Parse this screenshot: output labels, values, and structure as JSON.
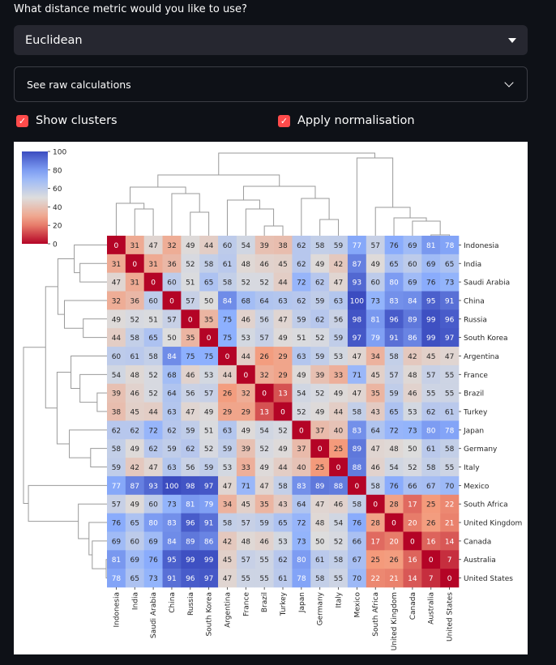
{
  "question_label": "What distance metric would you like to use?",
  "metric_select": {
    "value": "Euclidean",
    "icon": "caret-down-icon"
  },
  "expander": {
    "label": "See raw calculations",
    "icon": "chevron-down-icon"
  },
  "checkboxes": [
    {
      "label": "Show clusters",
      "checked": true
    },
    {
      "label": "Apply normalisation",
      "checked": true
    }
  ],
  "colors": {
    "accent": "#ff4b4b",
    "background": "#0e1117",
    "widget": "#262730"
  },
  "chart_data": {
    "type": "heatmap",
    "colormap": "coolwarm_r",
    "vmin": 0,
    "vmax": 100,
    "colorbar_ticks": [
      0,
      20,
      40,
      60,
      80,
      100
    ],
    "dendrograms": "rows and columns",
    "labels": [
      "Indonesia",
      "India",
      "Saudi Arabia",
      "China",
      "Russia",
      "South Korea",
      "Argentina",
      "France",
      "Brazil",
      "Turkey",
      "Japan",
      "Germany",
      "Italy",
      "Mexico",
      "South Africa",
      "United Kingdom",
      "Canada",
      "Australia",
      "United States"
    ],
    "values": [
      [
        0,
        31,
        47,
        32,
        49,
        44,
        60,
        54,
        39,
        38,
        62,
        58,
        59,
        77,
        57,
        76,
        69,
        81,
        78
      ],
      [
        31,
        0,
        31,
        36,
        52,
        58,
        61,
        48,
        46,
        45,
        62,
        49,
        42,
        87,
        49,
        65,
        60,
        69,
        65
      ],
      [
        47,
        31,
        0,
        60,
        51,
        65,
        58,
        52,
        52,
        44,
        72,
        62,
        47,
        93,
        60,
        80,
        69,
        76,
        73
      ],
      [
        32,
        36,
        60,
        0,
        57,
        50,
        84,
        68,
        64,
        63,
        62,
        59,
        63,
        100,
        73,
        83,
        84,
        95,
        91
      ],
      [
        49,
        52,
        51,
        57,
        0,
        35,
        75,
        46,
        56,
        47,
        59,
        62,
        56,
        98,
        81,
        96,
        89,
        99,
        96
      ],
      [
        44,
        58,
        65,
        50,
        35,
        0,
        75,
        53,
        57,
        49,
        51,
        52,
        59,
        97,
        79,
        91,
        86,
        99,
        97
      ],
      [
        60,
        61,
        58,
        84,
        75,
        75,
        0,
        44,
        26,
        29,
        63,
        59,
        53,
        47,
        34,
        58,
        42,
        45,
        47
      ],
      [
        54,
        48,
        52,
        68,
        46,
        53,
        44,
        0,
        32,
        29,
        49,
        39,
        33,
        71,
        45,
        57,
        48,
        57,
        55
      ],
      [
        39,
        46,
        52,
        64,
        56,
        57,
        26,
        32,
        0,
        13,
        54,
        52,
        49,
        47,
        35,
        59,
        46,
        55,
        55
      ],
      [
        38,
        45,
        44,
        63,
        47,
        49,
        29,
        29,
        13,
        0,
        52,
        49,
        44,
        58,
        43,
        65,
        53,
        62,
        61
      ],
      [
        62,
        62,
        72,
        62,
        59,
        51,
        63,
        49,
        54,
        52,
        0,
        37,
        40,
        83,
        64,
        72,
        73,
        80,
        78
      ],
      [
        58,
        49,
        62,
        59,
        62,
        52,
        59,
        39,
        52,
        49,
        37,
        0,
        25,
        89,
        47,
        48,
        50,
        61,
        58
      ],
      [
        59,
        42,
        47,
        63,
        56,
        59,
        53,
        33,
        49,
        44,
        40,
        25,
        0,
        88,
        46,
        54,
        52,
        58,
        55
      ],
      [
        77,
        87,
        93,
        100,
        98,
        97,
        47,
        71,
        47,
        58,
        83,
        89,
        88,
        0,
        58,
        76,
        66,
        67,
        70
      ],
      [
        57,
        49,
        60,
        73,
        81,
        79,
        34,
        45,
        35,
        43,
        64,
        47,
        46,
        58,
        0,
        28,
        17,
        25,
        22
      ],
      [
        76,
        65,
        80,
        83,
        96,
        91,
        58,
        57,
        59,
        65,
        72,
        48,
        54,
        76,
        28,
        0,
        20,
        26,
        21
      ],
      [
        69,
        60,
        69,
        84,
        89,
        86,
        42,
        48,
        46,
        53,
        73,
        50,
        52,
        66,
        17,
        20,
        0,
        16,
        14
      ],
      [
        81,
        69,
        76,
        95,
        99,
        99,
        45,
        57,
        55,
        62,
        80,
        61,
        58,
        67,
        25,
        26,
        16,
        0,
        7
      ],
      [
        78,
        65,
        73,
        91,
        96,
        97,
        47,
        55,
        55,
        61,
        78,
        58,
        55,
        70,
        22,
        21,
        14,
        7,
        0
      ]
    ]
  }
}
